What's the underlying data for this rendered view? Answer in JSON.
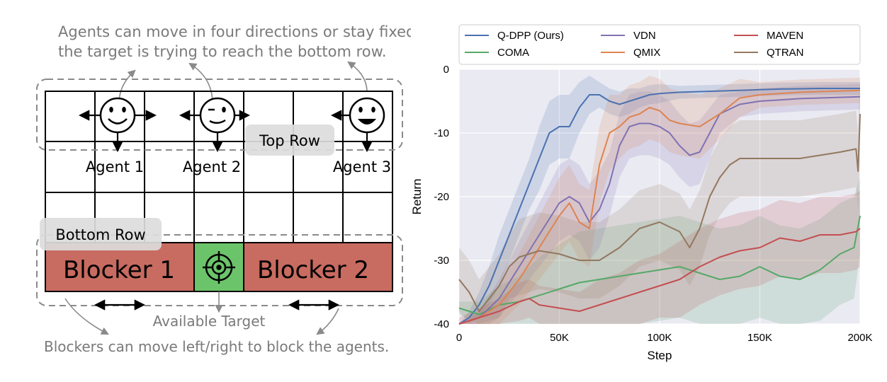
{
  "diagram": {
    "caption_top_line1": "Agents can move in four directions or stay fixed,",
    "caption_top_line2": "the target is trying to reach the bottom row.",
    "top_row_label": "Top Row",
    "bottom_row_label": "Bottom Row",
    "agents": [
      "Agent 1",
      "Agent 2",
      "Agent 3"
    ],
    "blockers": [
      "Blocker 1",
      "Blocker 2"
    ],
    "target_label": "Available Target",
    "caption_bottom": "Blockers can move left/right to block the agents.",
    "colors": {
      "blocker": "#c86b60",
      "target": "#6cc46a",
      "dashed": "#8a8a8a",
      "label_box": "#dcdcdc"
    }
  },
  "chart_data": {
    "type": "line",
    "title": "",
    "xlabel": "Step",
    "ylabel": "Return",
    "xlim": [
      0,
      200000
    ],
    "ylim": [
      -40,
      0
    ],
    "x_ticks": [
      0,
      50000,
      100000,
      150000,
      200000
    ],
    "x_tick_labels": [
      "0",
      "50K",
      "100K",
      "150K",
      "200K"
    ],
    "y_ticks": [
      0,
      -10,
      -20,
      -30,
      -40
    ],
    "y_tick_labels": [
      "0",
      "-10",
      "-20",
      "-30",
      "-40"
    ],
    "grid": true,
    "legend_position": "top",
    "series": [
      {
        "name": "Q-DPP (Ours)",
        "color": "#4c72b0",
        "x": [
          0,
          5000,
          10000,
          15000,
          20000,
          25000,
          30000,
          35000,
          40000,
          45000,
          50000,
          55000,
          60000,
          65000,
          70000,
          75000,
          80000,
          85000,
          90000,
          95000,
          100000,
          110000,
          120000,
          130000,
          140000,
          150000,
          160000,
          170000,
          180000,
          190000,
          200000
        ],
        "y": [
          -40,
          -39,
          -37,
          -34,
          -30,
          -26,
          -22,
          -18,
          -14,
          -10,
          -9,
          -9,
          -6,
          -4,
          -4,
          -5,
          -5.5,
          -5,
          -4.5,
          -4,
          -3.8,
          -3.6,
          -3.5,
          -3.4,
          -3.3,
          -3.2,
          -3.1,
          -3.05,
          -3,
          -3,
          -3
        ],
        "spread": [
          0,
          1,
          2,
          3,
          4,
          4,
          4,
          4,
          5,
          5,
          5,
          5,
          4,
          3,
          2,
          2,
          2,
          2,
          1.5,
          1.5,
          1.5,
          1,
          1,
          1,
          1,
          1,
          1,
          1,
          1,
          1,
          1
        ]
      },
      {
        "name": "COMA",
        "color": "#55a868",
        "x": [
          0,
          10000,
          20000,
          30000,
          40000,
          50000,
          60000,
          70000,
          80000,
          90000,
          100000,
          110000,
          120000,
          130000,
          140000,
          150000,
          160000,
          170000,
          180000,
          190000,
          197000,
          200000
        ],
        "y": [
          -37.5,
          -38.5,
          -37,
          -36.5,
          -35.5,
          -34.5,
          -33.5,
          -33,
          -32.5,
          -32,
          -31.5,
          -31,
          -32,
          -33,
          -32.5,
          -31,
          -32.5,
          -33,
          -31.5,
          -29,
          -28,
          -23
        ],
        "spread": [
          1,
          2,
          3,
          4,
          6,
          7,
          8,
          8,
          8,
          8,
          8,
          8,
          8,
          8,
          8,
          8,
          8,
          8,
          8,
          8,
          8,
          6
        ]
      },
      {
        "name": "VDN",
        "color": "#8172b2",
        "x": [
          0,
          10000,
          20000,
          30000,
          40000,
          50000,
          55000,
          60000,
          65000,
          70000,
          75000,
          80000,
          85000,
          90000,
          95000,
          100000,
          105000,
          110000,
          115000,
          120000,
          130000,
          140000,
          150000,
          160000,
          170000,
          180000,
          190000,
          200000
        ],
        "y": [
          -40,
          -39,
          -36,
          -31,
          -26,
          -21,
          -20,
          -21,
          -24,
          -22,
          -18,
          -12,
          -9,
          -8.5,
          -8.5,
          -9,
          -10,
          -12,
          -13.5,
          -13,
          -7,
          -5.5,
          -5,
          -4.8,
          -4.6,
          -4.5,
          -4.4,
          -4.3
        ],
        "spread": [
          0,
          1,
          3,
          4,
          5,
          6,
          6,
          6,
          6,
          6,
          5,
          5,
          5,
          5,
          5,
          5,
          5,
          5,
          5,
          5,
          3,
          2,
          2,
          2,
          2,
          2,
          2,
          2
        ]
      },
      {
        "name": "QMIX",
        "color": "#dd8452",
        "x": [
          0,
          10000,
          20000,
          30000,
          40000,
          50000,
          55000,
          60000,
          65000,
          70000,
          75000,
          80000,
          85000,
          90000,
          95000,
          100000,
          105000,
          110000,
          120000,
          130000,
          140000,
          150000,
          160000,
          170000,
          180000,
          190000,
          200000
        ],
        "y": [
          -40,
          -39,
          -37,
          -33,
          -28,
          -23,
          -21,
          -24,
          -25,
          -15,
          -10,
          -9,
          -7.5,
          -7,
          -6,
          -6.5,
          -8,
          -8.5,
          -9,
          -7,
          -4.5,
          -4,
          -3.8,
          -3.6,
          -3.5,
          -3.4,
          -3.3
        ],
        "spread": [
          0,
          1,
          3,
          4,
          5,
          6,
          6,
          6,
          6,
          6,
          6,
          5,
          5,
          5,
          5,
          5,
          5,
          5,
          5,
          4,
          3,
          2,
          2,
          2,
          2,
          2,
          2
        ]
      },
      {
        "name": "MAVEN",
        "color": "#c44e52",
        "x": [
          0,
          10000,
          20000,
          30000,
          35000,
          40000,
          50000,
          60000,
          70000,
          80000,
          90000,
          100000,
          110000,
          120000,
          130000,
          140000,
          150000,
          160000,
          170000,
          180000,
          190000,
          198000,
          200000
        ],
        "y": [
          -40,
          -39,
          -38,
          -36.5,
          -36,
          -37,
          -37.5,
          -38,
          -37,
          -36,
          -35,
          -34,
          -33,
          -31,
          -29.5,
          -28.5,
          -28,
          -26.5,
          -27,
          -26,
          -26,
          -25.5,
          -25
        ],
        "spread": [
          1,
          1.5,
          2,
          3,
          3,
          3,
          3,
          3,
          4,
          4,
          5,
          5,
          6,
          6,
          6,
          6,
          6,
          6,
          6,
          6,
          6,
          6,
          6
        ]
      },
      {
        "name": "QTRAN",
        "color": "#937860",
        "x": [
          0,
          5000,
          10000,
          15000,
          20000,
          25000,
          30000,
          40000,
          50000,
          60000,
          70000,
          80000,
          90000,
          100000,
          110000,
          115000,
          120000,
          125000,
          130000,
          135000,
          140000,
          150000,
          160000,
          170000,
          180000,
          190000,
          198000,
          199000,
          200000
        ],
        "y": [
          -33,
          -35,
          -38,
          -36,
          -34,
          -31,
          -29.5,
          -28.5,
          -29,
          -30,
          -30,
          -28,
          -25,
          -24,
          -25.5,
          -28,
          -25,
          -20,
          -17,
          -15,
          -14,
          -14,
          -14,
          -14,
          -13.5,
          -13,
          -12.5,
          -16,
          -7
        ],
        "spread": [
          5,
          5,
          5,
          5,
          5,
          5,
          6,
          6,
          6,
          6,
          6,
          6,
          6,
          6,
          6,
          6,
          6,
          6,
          6,
          6,
          6,
          6,
          6,
          6,
          6,
          6,
          6,
          6,
          6
        ]
      }
    ]
  }
}
